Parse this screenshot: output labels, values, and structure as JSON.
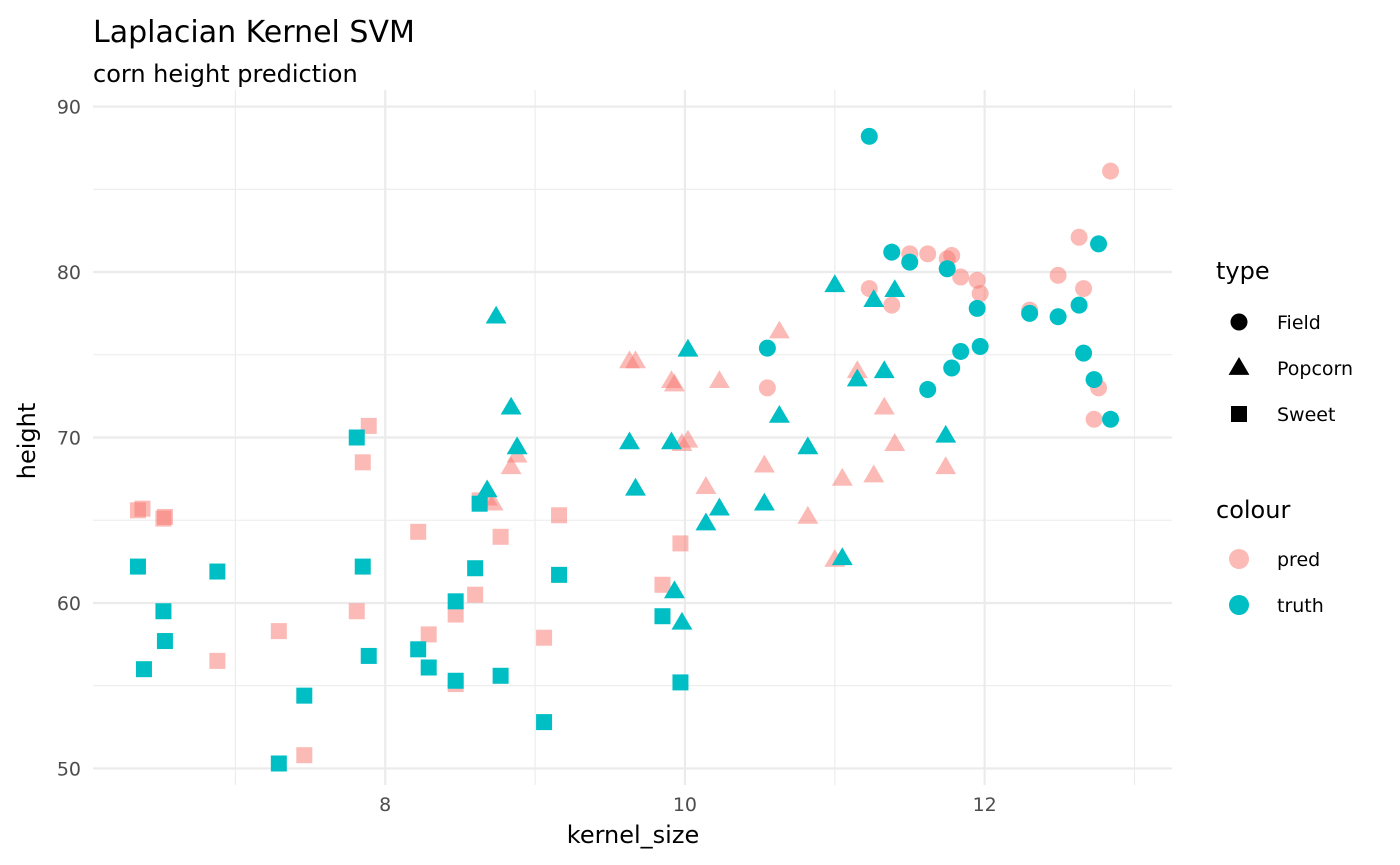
{
  "chart_data": {
    "type": "scatter",
    "title": "Laplacian Kernel SVM",
    "subtitle": "corn height prediction",
    "xlabel": "kernel_size",
    "ylabel": "height",
    "xlim": [
      6.05,
      13.25
    ],
    "ylim": [
      49,
      91
    ],
    "x_ticks": [
      8,
      10,
      12
    ],
    "y_ticks": [
      50,
      60,
      70,
      80,
      90
    ],
    "grid": true,
    "colors": {
      "pred": "#F8766D",
      "truth": "#00BFC4"
    },
    "legend": {
      "position": "right",
      "shape_title": "type",
      "shape_items": [
        {
          "label": "Field",
          "shape": "circle"
        },
        {
          "label": "Popcorn",
          "shape": "triangle"
        },
        {
          "label": "Sweet",
          "shape": "square"
        }
      ],
      "colour_title": "colour",
      "colour_items": [
        {
          "label": "pred",
          "color": "#F8766D"
        },
        {
          "label": "truth",
          "color": "#00BFC4"
        }
      ]
    },
    "series": [
      {
        "name": "pred",
        "points": [
          {
            "x": 6.35,
            "y": 65.6,
            "type": "Sweet"
          },
          {
            "x": 6.38,
            "y": 65.7,
            "type": "Sweet"
          },
          {
            "x": 6.52,
            "y": 65.1,
            "type": "Sweet"
          },
          {
            "x": 6.53,
            "y": 65.2,
            "type": "Sweet"
          },
          {
            "x": 6.88,
            "y": 56.5,
            "type": "Sweet"
          },
          {
            "x": 7.29,
            "y": 58.3,
            "type": "Sweet"
          },
          {
            "x": 7.46,
            "y": 50.8,
            "type": "Sweet"
          },
          {
            "x": 7.81,
            "y": 59.5,
            "type": "Sweet"
          },
          {
            "x": 7.85,
            "y": 68.5,
            "type": "Sweet"
          },
          {
            "x": 7.89,
            "y": 70.7,
            "type": "Sweet"
          },
          {
            "x": 8.22,
            "y": 64.3,
            "type": "Sweet"
          },
          {
            "x": 8.29,
            "y": 58.1,
            "type": "Sweet"
          },
          {
            "x": 8.47,
            "y": 59.3,
            "type": "Sweet"
          },
          {
            "x": 8.47,
            "y": 55.1,
            "type": "Sweet"
          },
          {
            "x": 8.6,
            "y": 60.5,
            "type": "Sweet"
          },
          {
            "x": 8.63,
            "y": 66.2,
            "type": "Sweet"
          },
          {
            "x": 8.77,
            "y": 64.0,
            "type": "Sweet"
          },
          {
            "x": 9.06,
            "y": 57.9,
            "type": "Sweet"
          },
          {
            "x": 9.16,
            "y": 65.3,
            "type": "Sweet"
          },
          {
            "x": 9.85,
            "y": 61.1,
            "type": "Sweet"
          },
          {
            "x": 9.97,
            "y": 63.6,
            "type": "Sweet"
          },
          {
            "x": 8.68,
            "y": 66.3,
            "type": "Popcorn"
          },
          {
            "x": 8.72,
            "y": 66.0,
            "type": "Popcorn"
          },
          {
            "x": 8.84,
            "y": 68.2,
            "type": "Popcorn"
          },
          {
            "x": 8.88,
            "y": 68.9,
            "type": "Popcorn"
          },
          {
            "x": 9.63,
            "y": 74.6,
            "type": "Popcorn"
          },
          {
            "x": 9.67,
            "y": 74.6,
            "type": "Popcorn"
          },
          {
            "x": 9.91,
            "y": 73.4,
            "type": "Popcorn"
          },
          {
            "x": 9.93,
            "y": 73.2,
            "type": "Popcorn"
          },
          {
            "x": 9.98,
            "y": 69.6,
            "type": "Popcorn"
          },
          {
            "x": 10.02,
            "y": 69.8,
            "type": "Popcorn"
          },
          {
            "x": 10.14,
            "y": 67.0,
            "type": "Popcorn"
          },
          {
            "x": 10.23,
            "y": 73.4,
            "type": "Popcorn"
          },
          {
            "x": 10.53,
            "y": 68.3,
            "type": "Popcorn"
          },
          {
            "x": 10.63,
            "y": 76.4,
            "type": "Popcorn"
          },
          {
            "x": 10.82,
            "y": 65.2,
            "type": "Popcorn"
          },
          {
            "x": 11.0,
            "y": 62.6,
            "type": "Popcorn"
          },
          {
            "x": 11.05,
            "y": 67.5,
            "type": "Popcorn"
          },
          {
            "x": 11.15,
            "y": 74.0,
            "type": "Popcorn"
          },
          {
            "x": 11.26,
            "y": 67.7,
            "type": "Popcorn"
          },
          {
            "x": 11.33,
            "y": 71.8,
            "type": "Popcorn"
          },
          {
            "x": 11.4,
            "y": 69.6,
            "type": "Popcorn"
          },
          {
            "x": 11.74,
            "y": 68.2,
            "type": "Popcorn"
          },
          {
            "x": 10.55,
            "y": 73.0,
            "type": "Field"
          },
          {
            "x": 11.23,
            "y": 79.0,
            "type": "Field"
          },
          {
            "x": 11.38,
            "y": 78.0,
            "type": "Field"
          },
          {
            "x": 11.5,
            "y": 81.1,
            "type": "Field"
          },
          {
            "x": 11.62,
            "y": 81.1,
            "type": "Field"
          },
          {
            "x": 11.75,
            "y": 80.8,
            "type": "Field"
          },
          {
            "x": 11.78,
            "y": 81.0,
            "type": "Field"
          },
          {
            "x": 11.84,
            "y": 79.7,
            "type": "Field"
          },
          {
            "x": 11.95,
            "y": 79.5,
            "type": "Field"
          },
          {
            "x": 11.97,
            "y": 78.7,
            "type": "Field"
          },
          {
            "x": 12.3,
            "y": 77.7,
            "type": "Field"
          },
          {
            "x": 12.49,
            "y": 79.8,
            "type": "Field"
          },
          {
            "x": 12.63,
            "y": 82.1,
            "type": "Field"
          },
          {
            "x": 12.66,
            "y": 79.0,
            "type": "Field"
          },
          {
            "x": 12.73,
            "y": 71.1,
            "type": "Field"
          },
          {
            "x": 12.76,
            "y": 73.0,
            "type": "Field"
          },
          {
            "x": 12.84,
            "y": 86.1,
            "type": "Field"
          }
        ]
      },
      {
        "name": "truth",
        "points": [
          {
            "x": 6.35,
            "y": 62.2,
            "type": "Sweet"
          },
          {
            "x": 6.39,
            "y": 56.0,
            "type": "Sweet"
          },
          {
            "x": 6.52,
            "y": 59.5,
            "type": "Sweet"
          },
          {
            "x": 6.53,
            "y": 57.7,
            "type": "Sweet"
          },
          {
            "x": 6.88,
            "y": 61.9,
            "type": "Sweet"
          },
          {
            "x": 7.29,
            "y": 50.3,
            "type": "Sweet"
          },
          {
            "x": 7.46,
            "y": 54.4,
            "type": "Sweet"
          },
          {
            "x": 7.81,
            "y": 70.0,
            "type": "Sweet"
          },
          {
            "x": 7.85,
            "y": 62.2,
            "type": "Sweet"
          },
          {
            "x": 7.89,
            "y": 56.8,
            "type": "Sweet"
          },
          {
            "x": 8.22,
            "y": 57.2,
            "type": "Sweet"
          },
          {
            "x": 8.29,
            "y": 56.1,
            "type": "Sweet"
          },
          {
            "x": 8.47,
            "y": 60.1,
            "type": "Sweet"
          },
          {
            "x": 8.47,
            "y": 55.3,
            "type": "Sweet"
          },
          {
            "x": 8.6,
            "y": 62.1,
            "type": "Sweet"
          },
          {
            "x": 8.63,
            "y": 66.0,
            "type": "Sweet"
          },
          {
            "x": 8.77,
            "y": 55.6,
            "type": "Sweet"
          },
          {
            "x": 9.06,
            "y": 52.8,
            "type": "Sweet"
          },
          {
            "x": 9.16,
            "y": 61.7,
            "type": "Sweet"
          },
          {
            "x": 9.85,
            "y": 59.2,
            "type": "Sweet"
          },
          {
            "x": 9.97,
            "y": 55.2,
            "type": "Sweet"
          },
          {
            "x": 8.68,
            "y": 66.8,
            "type": "Popcorn"
          },
          {
            "x": 8.74,
            "y": 77.3,
            "type": "Popcorn"
          },
          {
            "x": 8.84,
            "y": 71.8,
            "type": "Popcorn"
          },
          {
            "x": 8.88,
            "y": 69.4,
            "type": "Popcorn"
          },
          {
            "x": 9.63,
            "y": 69.7,
            "type": "Popcorn"
          },
          {
            "x": 9.67,
            "y": 66.9,
            "type": "Popcorn"
          },
          {
            "x": 9.91,
            "y": 69.7,
            "type": "Popcorn"
          },
          {
            "x": 9.93,
            "y": 60.7,
            "type": "Popcorn"
          },
          {
            "x": 9.98,
            "y": 58.8,
            "type": "Popcorn"
          },
          {
            "x": 10.02,
            "y": 75.3,
            "type": "Popcorn"
          },
          {
            "x": 10.14,
            "y": 64.8,
            "type": "Popcorn"
          },
          {
            "x": 10.23,
            "y": 65.7,
            "type": "Popcorn"
          },
          {
            "x": 10.53,
            "y": 66.0,
            "type": "Popcorn"
          },
          {
            "x": 10.63,
            "y": 71.3,
            "type": "Popcorn"
          },
          {
            "x": 10.82,
            "y": 69.4,
            "type": "Popcorn"
          },
          {
            "x": 11.0,
            "y": 79.2,
            "type": "Popcorn"
          },
          {
            "x": 11.05,
            "y": 62.7,
            "type": "Popcorn"
          },
          {
            "x": 11.15,
            "y": 73.5,
            "type": "Popcorn"
          },
          {
            "x": 11.26,
            "y": 78.3,
            "type": "Popcorn"
          },
          {
            "x": 11.33,
            "y": 74.0,
            "type": "Popcorn"
          },
          {
            "x": 11.4,
            "y": 78.9,
            "type": "Popcorn"
          },
          {
            "x": 11.74,
            "y": 70.1,
            "type": "Popcorn"
          },
          {
            "x": 10.55,
            "y": 75.4,
            "type": "Field"
          },
          {
            "x": 11.23,
            "y": 88.2,
            "type": "Field"
          },
          {
            "x": 11.38,
            "y": 81.2,
            "type": "Field"
          },
          {
            "x": 11.5,
            "y": 80.6,
            "type": "Field"
          },
          {
            "x": 11.62,
            "y": 72.9,
            "type": "Field"
          },
          {
            "x": 11.75,
            "y": 80.2,
            "type": "Field"
          },
          {
            "x": 11.78,
            "y": 74.2,
            "type": "Field"
          },
          {
            "x": 11.84,
            "y": 75.2,
            "type": "Field"
          },
          {
            "x": 11.95,
            "y": 77.8,
            "type": "Field"
          },
          {
            "x": 11.97,
            "y": 75.5,
            "type": "Field"
          },
          {
            "x": 12.3,
            "y": 77.5,
            "type": "Field"
          },
          {
            "x": 12.49,
            "y": 77.3,
            "type": "Field"
          },
          {
            "x": 12.63,
            "y": 78.0,
            "type": "Field"
          },
          {
            "x": 12.66,
            "y": 75.1,
            "type": "Field"
          },
          {
            "x": 12.73,
            "y": 73.5,
            "type": "Field"
          },
          {
            "x": 12.76,
            "y": 81.7,
            "type": "Field"
          },
          {
            "x": 12.84,
            "y": 71.1,
            "type": "Field"
          }
        ]
      }
    ]
  }
}
